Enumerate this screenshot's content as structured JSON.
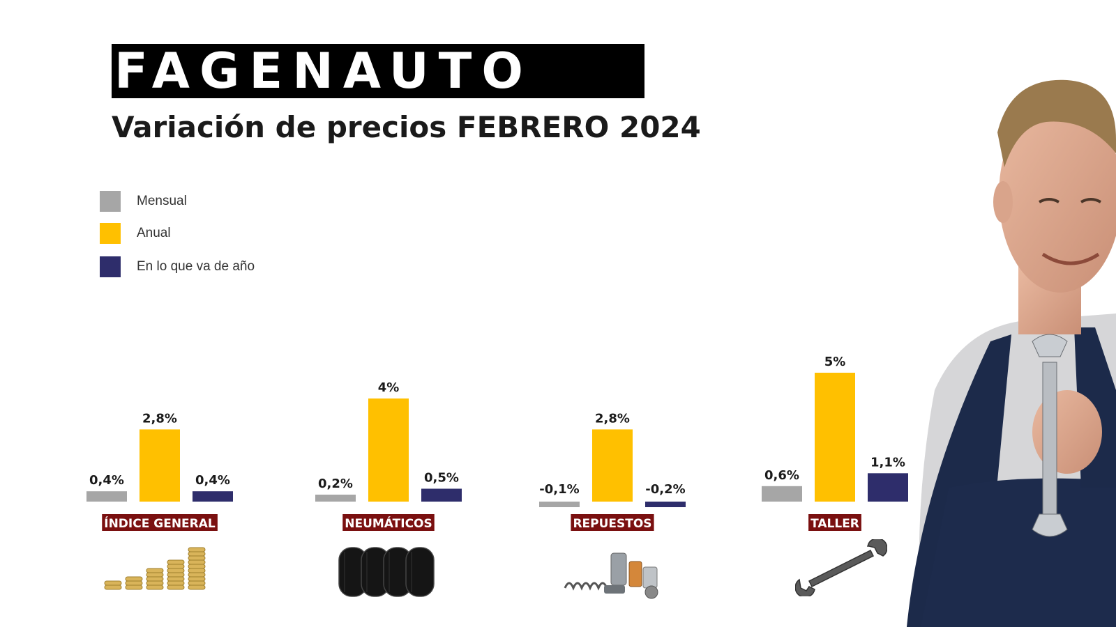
{
  "brand": {
    "logo_text": "FAGENAUTO"
  },
  "title": "Variación de precios FEBRERO 2024",
  "legend": [
    {
      "label": "Mensual",
      "color": "#a6a6a6"
    },
    {
      "label": "Anual",
      "color": "#ffc000"
    },
    {
      "label": "En lo que va de año",
      "color": "#2e2d6b"
    }
  ],
  "chart_data": {
    "type": "bar",
    "title": "Variación de precios FEBRERO 2024",
    "categories": [
      "ÍNDICE GENERAL",
      "NEUMÁTICOS",
      "REPUESTOS",
      "TALLER"
    ],
    "series": [
      {
        "name": "Mensual",
        "color": "#a6a6a6",
        "values": [
          0.4,
          0.2,
          -0.1,
          0.6
        ],
        "labels": [
          "0,4%",
          "0,2%",
          "-0,1%",
          "0,6%"
        ]
      },
      {
        "name": "Anual",
        "color": "#ffc000",
        "values": [
          2.8,
          4,
          2.8,
          5
        ],
        "labels": [
          "2,8%",
          "4%",
          "2,8%",
          "5%"
        ]
      },
      {
        "name": "En lo que va de año",
        "color": "#2e2d6b",
        "values": [
          0.4,
          0.5,
          -0.2,
          1.1
        ],
        "labels": [
          "0,4%",
          "0,5%",
          "-0,2%",
          "1,1%"
        ]
      }
    ],
    "grid": false,
    "legend_position": "top-left"
  },
  "category_labels_color": "#7a1010",
  "illustrations": [
    "coins-stack-icon",
    "tires-icon",
    "car-parts-icon",
    "wrench-icon",
    "mechanic-photo"
  ]
}
